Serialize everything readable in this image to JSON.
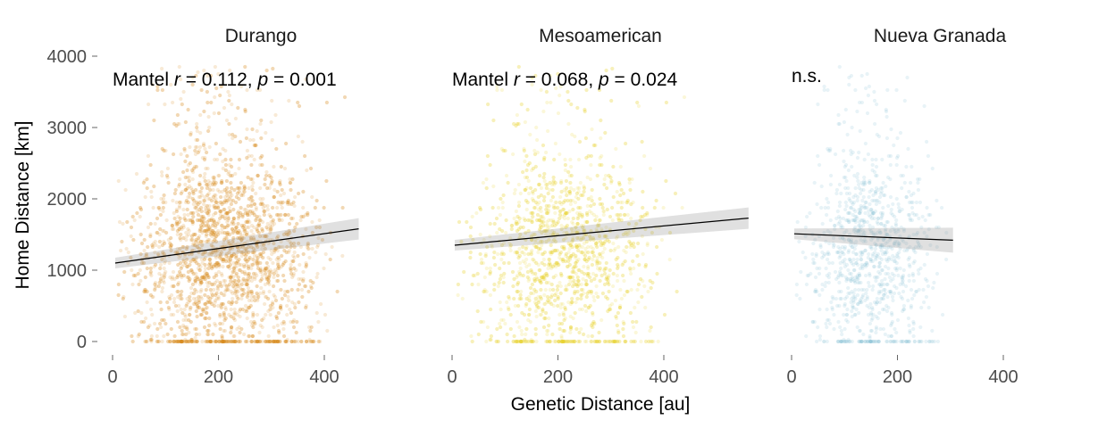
{
  "chart_data": {
    "type": "scatter",
    "xlabel": "Genetic Distance [au]",
    "ylabel": "Home Distance [km]",
    "xlim": [
      0,
      480
    ],
    "ylim": [
      -80,
      4000
    ],
    "x_ticks": [
      0,
      200,
      400
    ],
    "x_tick_labels": [
      "0",
      "200",
      "400"
    ],
    "y_ticks": [
      0,
      1000,
      2000,
      3000,
      4000
    ],
    "y_tick_labels": [
      "0",
      "1000",
      "2000",
      "3000",
      "4000"
    ],
    "grid": false,
    "legend": "none",
    "panels": [
      {
        "title": "Durango",
        "color": "#D98A1C",
        "annotation": {
          "prefix": "Mantel ",
          "r_label": "r",
          "r_text": " = 0.112, ",
          "p_label": "p",
          "p_text": " = 0.001"
        },
        "x_range": [
          5,
          465
        ],
        "y_range": [
          0,
          3850
        ],
        "trend_line": {
          "x": [
            5,
            465
          ],
          "y": [
            1100,
            1580
          ]
        }
      },
      {
        "title": "Mesoamerican",
        "color": "#E8D22A",
        "annotation": {
          "prefix": "Mantel ",
          "r_label": "r",
          "r_text": " = 0.068, ",
          "p_label": "p",
          "p_text": " = 0.024"
        },
        "x_range": [
          5,
          560
        ],
        "y_range": [
          0,
          3850
        ],
        "trend_line": {
          "x": [
            5,
            560
          ],
          "y": [
            1350,
            1730
          ]
        }
      },
      {
        "title": "Nueva Granada",
        "color": "#7DBCD3",
        "annotation": {
          "text": "n.s."
        },
        "x_range": [
          5,
          305
        ],
        "y_range": [
          0,
          3850
        ],
        "trend_line": {
          "x": [
            5,
            305
          ],
          "y": [
            1510,
            1420
          ]
        }
      }
    ]
  }
}
